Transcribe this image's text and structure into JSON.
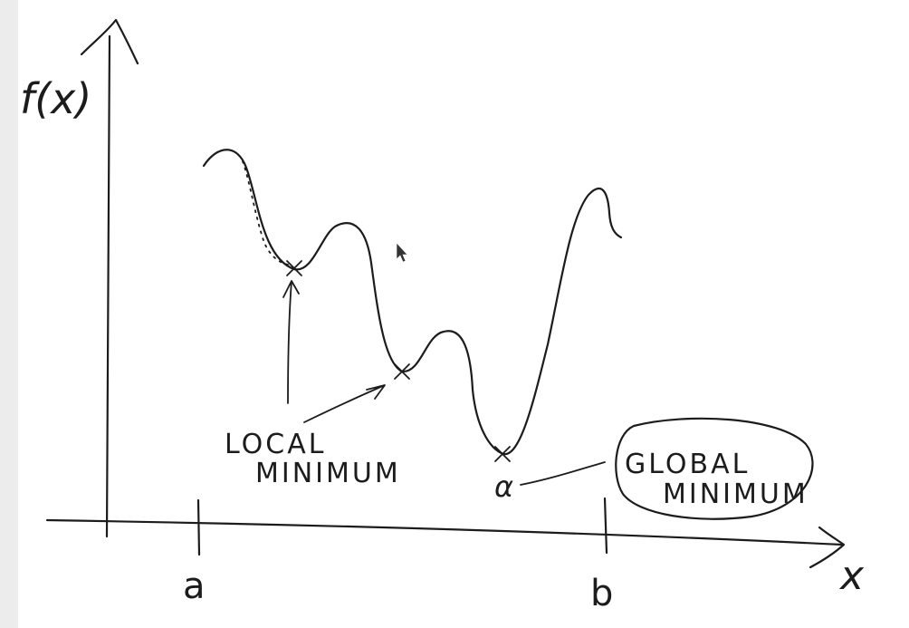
{
  "diagram": {
    "y_axis_label": "f(x)",
    "x_axis_label": "x",
    "interval_start_label": "a",
    "interval_end_label": "b",
    "local_minimum_label_line1": "LOCAL",
    "local_minimum_label_line2": "MINIMUM",
    "global_minimum_label_line1": "GLOBAL",
    "global_minimum_label_line2": "MINIMUM",
    "global_minimum_point_label": "α",
    "cursor_icon": "mouse-pointer-icon"
  }
}
